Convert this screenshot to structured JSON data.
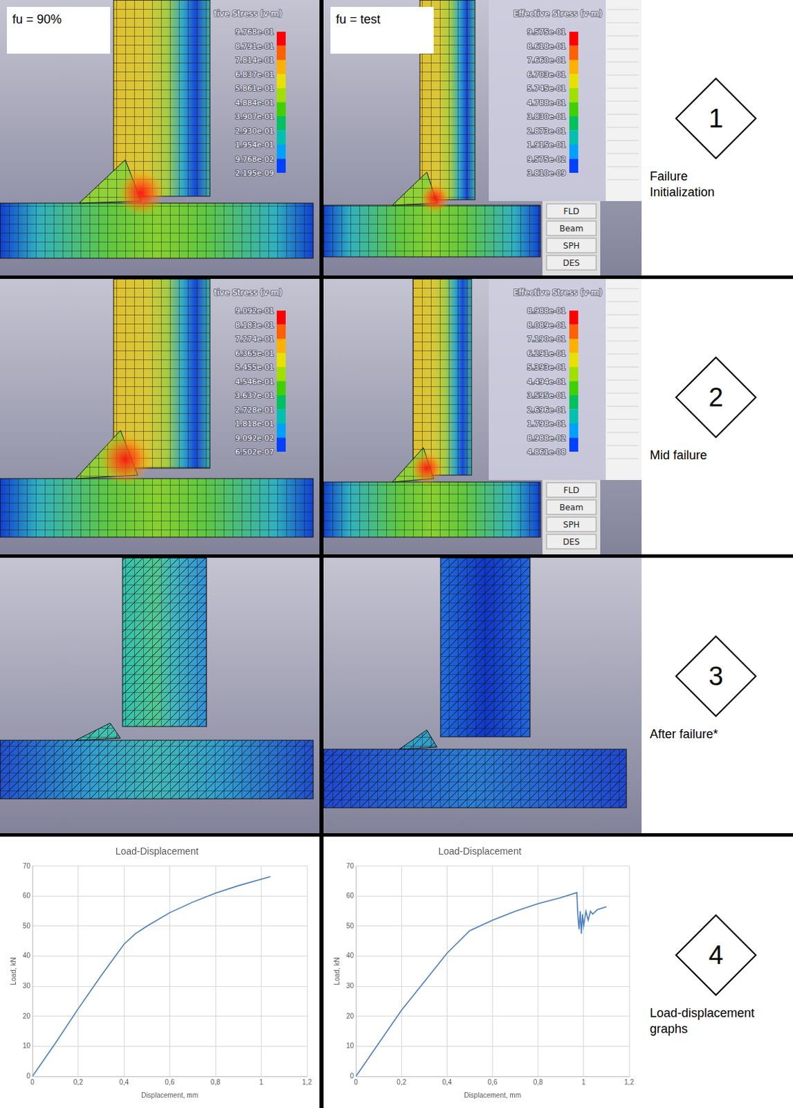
{
  "figure": {
    "columns": [
      {
        "label": "fu = 90%"
      },
      {
        "label": "fu = test"
      }
    ],
    "rows": [
      {
        "marker": "1",
        "caption": "Failure Initialization",
        "color_bars": [
          {
            "title": "tive Stress (v-m)",
            "ticks": [
              "9.768e-01",
              "8.791e-01",
              "7.814e-01",
              "6.837e-01",
              "5.861e-01",
              "4.884e-01",
              "3.907e-01",
              "2.930e-01",
              "1.954e-01",
              "9.768e-02",
              "2.195e-09"
            ]
          },
          {
            "title": "Effective Stress (v-m)",
            "ticks": [
              "9.575e-01",
              "8.618e-01",
              "7.660e-01",
              "6.703e-01",
              "5.745e-01",
              "4.788e-01",
              "3.830e-01",
              "2.873e-01",
              "1.915e-01",
              "9.575e-02",
              "3.810e-09"
            ]
          }
        ]
      },
      {
        "marker": "2",
        "caption": "Mid failure",
        "color_bars": [
          {
            "title": "tive Stress (v-m)",
            "ticks": [
              "9.092e-01",
              "8.183e-01",
              "7.274e-01",
              "6.365e-01",
              "5.455e-01",
              "4.546e-01",
              "3.637e-01",
              "2.728e-01",
              "1.818e-01",
              "9.092e-02",
              "6.502e-07"
            ]
          },
          {
            "title": "Effective Stress (v-m)",
            "ticks": [
              "8.988e-01",
              "8.089e-01",
              "7.190e-01",
              "6.291e-01",
              "5.393e-01",
              "4.494e-01",
              "3.595e-01",
              "2.696e-01",
              "1.798e-01",
              "8.988e-02",
              "4.861e-08"
            ]
          }
        ]
      },
      {
        "marker": "3",
        "caption": "After failure*"
      },
      {
        "marker": "4",
        "caption": "Load-displacement graphs"
      }
    ],
    "ui_buttons": [
      "FLD",
      "Beam",
      "SPH",
      "DES"
    ]
  },
  "chart_data": [
    {
      "type": "line",
      "title": "Load-Displacement",
      "x_label": "Displacement, mm",
      "y_label": "Load, kN",
      "x": [
        0,
        0.1,
        0.2,
        0.3,
        0.4,
        0.45,
        0.5,
        0.6,
        0.7,
        0.8,
        0.9,
        1.04
      ],
      "values": [
        0,
        11,
        22.5,
        33.5,
        44,
        47.5,
        50,
        54.5,
        58,
        61,
        63.5,
        66.5
      ],
      "color": "#4a7ebb",
      "xlim": [
        0,
        1.2
      ],
      "ylim": [
        0,
        70
      ],
      "xticks": [
        0,
        {
          "value": 0.2,
          "label": "0,2"
        },
        {
          "value": 0.4,
          "label": "0,4"
        },
        {
          "value": 0.6,
          "label": "0,6"
        },
        {
          "value": 0.8,
          "label": "0,8"
        },
        1,
        {
          "value": 1.2,
          "label": "1,2"
        }
      ],
      "yticks": [
        0,
        10,
        20,
        30,
        40,
        50,
        60,
        70
      ],
      "grid": true
    },
    {
      "type": "line",
      "title": "Load-Displacement",
      "x_label": "Displacement, mm",
      "y_label": "Load, kN",
      "x": [
        0,
        0.1,
        0.2,
        0.3,
        0.4,
        0.5,
        0.6,
        0.7,
        0.8,
        0.9,
        0.97,
        0.975,
        0.98,
        0.985,
        0.99,
        0.995,
        1.0,
        1.01,
        1.02,
        1.03,
        1.04,
        1.06,
        1.1
      ],
      "values": [
        0,
        11,
        22,
        31.5,
        41,
        48.5,
        52,
        55,
        57.5,
        59.5,
        61.2,
        53,
        49,
        55,
        47.5,
        54,
        50,
        55,
        52,
        55,
        54,
        55.5,
        56.5
      ],
      "color": "#4a7ebb",
      "xlim": [
        0,
        1.2
      ],
      "ylim": [
        0,
        70
      ],
      "xticks": [
        0,
        {
          "value": 0.2,
          "label": "0,2"
        },
        {
          "value": 0.4,
          "label": "0,4"
        },
        {
          "value": 0.6,
          "label": "0,6"
        },
        {
          "value": 0.8,
          "label": "0,8"
        },
        1,
        {
          "value": 1.2,
          "label": "1,2"
        }
      ],
      "yticks": [
        0,
        10,
        20,
        30,
        40,
        50,
        60,
        70
      ],
      "grid": true
    }
  ]
}
